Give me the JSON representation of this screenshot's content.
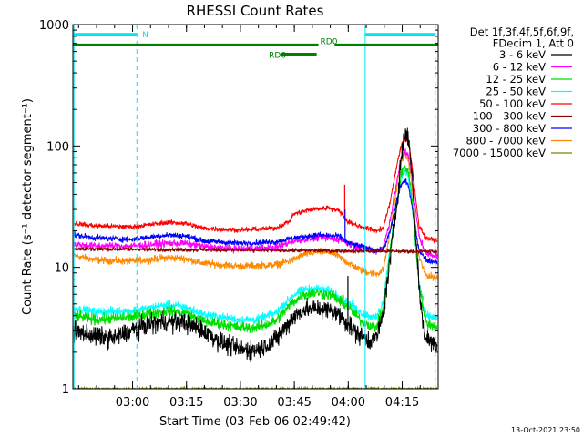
{
  "chart_data": {
    "type": "line",
    "title": "RHESSI Count Rates",
    "xlabel": "Start Time (03-Feb-06 02:49:42)",
    "ylabel": "Count Rate (s⁻¹ detector segment⁻¹)",
    "y_scale": "log",
    "ylim": [
      1,
      1000
    ],
    "xlim_minutes": [
      -6.3,
      95.3
    ],
    "y_ticks": [
      {
        "v": 1,
        "label": "1"
      },
      {
        "v": 10,
        "label": "10"
      },
      {
        "v": 100,
        "label": "100"
      },
      {
        "v": 1000,
        "label": "1000"
      }
    ],
    "x_ticks": [
      {
        "v": 10.3,
        "label": "03:00"
      },
      {
        "v": 25.3,
        "label": "03:15"
      },
      {
        "v": 40.3,
        "label": "03:30"
      },
      {
        "v": 55.3,
        "label": "03:45"
      },
      {
        "v": 70.3,
        "label": "04:00"
      },
      {
        "v": 85.3,
        "label": "04:15"
      }
    ],
    "legend": {
      "header": [
        "Det 1f,3f,4f,5f,6f,9f,",
        "FDecim 1, Att 0"
      ],
      "placement": "right, outside plot"
    },
    "series": [
      {
        "name": "3 - 6 keV",
        "color": "#000000",
        "noise": 0.16,
        "anchors": [
          [
            -6,
            3.0
          ],
          [
            0,
            2.7
          ],
          [
            5,
            2.6
          ],
          [
            10,
            3.0
          ],
          [
            15,
            3.4
          ],
          [
            20,
            3.6
          ],
          [
            25,
            3.5
          ],
          [
            30,
            3.0
          ],
          [
            35,
            2.4
          ],
          [
            40,
            2.1
          ],
          [
            45,
            2.1
          ],
          [
            50,
            2.5
          ],
          [
            52,
            3.0
          ],
          [
            55,
            3.9
          ],
          [
            58,
            4.5
          ],
          [
            62,
            4.6
          ],
          [
            66,
            4.4
          ],
          [
            68,
            4.0
          ],
          [
            70,
            3.5
          ],
          [
            72,
            3.0
          ],
          [
            74,
            2.7
          ],
          [
            76,
            2.5
          ],
          [
            78,
            2.6
          ],
          [
            80,
            4.0
          ],
          [
            82,
            12
          ],
          [
            84,
            38
          ],
          [
            85,
            80
          ],
          [
            86,
            125
          ],
          [
            87,
            118
          ],
          [
            88,
            60
          ],
          [
            89,
            20
          ],
          [
            90,
            7
          ],
          [
            91,
            3.5
          ],
          [
            92,
            2.6
          ],
          [
            94,
            2.4
          ],
          [
            95,
            2.4
          ]
        ]
      },
      {
        "name": "6 - 12 keV",
        "color": "#ff00ff",
        "noise": 0.06,
        "anchors": [
          [
            -6,
            15.5
          ],
          [
            0,
            15
          ],
          [
            10,
            15
          ],
          [
            20,
            15.8
          ],
          [
            25,
            15.8
          ],
          [
            30,
            14.8
          ],
          [
            40,
            14.2
          ],
          [
            50,
            14.5
          ],
          [
            55,
            16.5
          ],
          [
            62,
            17.6
          ],
          [
            68,
            17
          ],
          [
            72,
            15
          ],
          [
            78,
            13.8
          ],
          [
            80,
            14.5
          ],
          [
            82,
            25
          ],
          [
            84,
            55
          ],
          [
            85,
            78
          ],
          [
            86,
            90
          ],
          [
            87,
            85
          ],
          [
            88,
            55
          ],
          [
            89,
            30
          ],
          [
            90,
            18
          ],
          [
            92,
            13
          ],
          [
            95,
            12.5
          ]
        ]
      },
      {
        "name": "12 - 25 keV",
        "color": "#00dd00",
        "noise": 0.09,
        "anchors": [
          [
            -6,
            4.0
          ],
          [
            0,
            3.7
          ],
          [
            10,
            3.9
          ],
          [
            20,
            4.4
          ],
          [
            25,
            4.2
          ],
          [
            30,
            3.6
          ],
          [
            40,
            3.2
          ],
          [
            45,
            3.2
          ],
          [
            50,
            3.6
          ],
          [
            55,
            5.2
          ],
          [
            58,
            6.0
          ],
          [
            62,
            6.2
          ],
          [
            66,
            5.8
          ],
          [
            70,
            4.8
          ],
          [
            74,
            3.6
          ],
          [
            78,
            3.2
          ],
          [
            80,
            4.5
          ],
          [
            82,
            14
          ],
          [
            84,
            36
          ],
          [
            85,
            58
          ],
          [
            86,
            68
          ],
          [
            87,
            62
          ],
          [
            88,
            38
          ],
          [
            89,
            16
          ],
          [
            90,
            7
          ],
          [
            92,
            3.5
          ],
          [
            95,
            3.2
          ]
        ]
      },
      {
        "name": "25 - 50 keV",
        "color": "#00ffff",
        "noise": 0.07,
        "anchors": [
          [
            -6,
            4.6
          ],
          [
            0,
            4.3
          ],
          [
            10,
            4.4
          ],
          [
            20,
            4.9
          ],
          [
            25,
            4.7
          ],
          [
            30,
            4.1
          ],
          [
            40,
            3.7
          ],
          [
            45,
            3.7
          ],
          [
            50,
            4.2
          ],
          [
            55,
            5.9
          ],
          [
            58,
            6.6
          ],
          [
            62,
            6.7
          ],
          [
            66,
            6.3
          ],
          [
            70,
            5.2
          ],
          [
            74,
            4.2
          ],
          [
            78,
            3.8
          ],
          [
            80,
            5.2
          ],
          [
            82,
            15
          ],
          [
            84,
            36
          ],
          [
            85,
            55
          ],
          [
            86,
            62
          ],
          [
            87,
            56
          ],
          [
            88,
            34
          ],
          [
            89,
            15
          ],
          [
            90,
            7.5
          ],
          [
            92,
            4.0
          ],
          [
            95,
            3.8
          ]
        ]
      },
      {
        "name": "50 - 100 keV",
        "color": "#ff0000",
        "noise": 0.04,
        "anchors": [
          [
            -6,
            23
          ],
          [
            0,
            22
          ],
          [
            10,
            21.5
          ],
          [
            20,
            23.5
          ],
          [
            25,
            23
          ],
          [
            30,
            21
          ],
          [
            40,
            20.3
          ],
          [
            50,
            21
          ],
          [
            54,
            24
          ],
          [
            55,
            27.5
          ],
          [
            60,
            30
          ],
          [
            65,
            31
          ],
          [
            68,
            29
          ],
          [
            70,
            24
          ],
          [
            73,
            22
          ],
          [
            78,
            20
          ],
          [
            80,
            21
          ],
          [
            82,
            35
          ],
          [
            84,
            75
          ],
          [
            85,
            100
          ],
          [
            86,
            115
          ],
          [
            87,
            108
          ],
          [
            88,
            70
          ],
          [
            89,
            38
          ],
          [
            90,
            22
          ],
          [
            92,
            17.5
          ],
          [
            95,
            16.5
          ]
        ]
      },
      {
        "name": "100 - 300 keV",
        "color": "#8b0000",
        "noise": 0.03,
        "anchors": [
          [
            -6,
            14.2
          ],
          [
            95,
            13.5
          ]
        ]
      },
      {
        "name": "300 - 800 keV",
        "color": "#0000ff",
        "noise": 0.045,
        "anchors": [
          [
            -6,
            18.5
          ],
          [
            0,
            17.5
          ],
          [
            10,
            17
          ],
          [
            20,
            18.5
          ],
          [
            25,
            18.2
          ],
          [
            30,
            16.5
          ],
          [
            40,
            15.8
          ],
          [
            50,
            16.2
          ],
          [
            55,
            17.5
          ],
          [
            62,
            18.5
          ],
          [
            68,
            18
          ],
          [
            70,
            16
          ],
          [
            78,
            13.8
          ],
          [
            80,
            14
          ],
          [
            82,
            20
          ],
          [
            84,
            38
          ],
          [
            85,
            48
          ],
          [
            86,
            52
          ],
          [
            87,
            48
          ],
          [
            88,
            32
          ],
          [
            89,
            20
          ],
          [
            90,
            14
          ],
          [
            92,
            11.5
          ],
          [
            95,
            11
          ]
        ]
      },
      {
        "name": "800 - 7000 keV",
        "color": "#ff8800",
        "noise": 0.06,
        "anchors": [
          [
            -6,
            12.5
          ],
          [
            0,
            11.5
          ],
          [
            10,
            11.2
          ],
          [
            20,
            12
          ],
          [
            25,
            11.8
          ],
          [
            30,
            10.8
          ],
          [
            40,
            10.2
          ],
          [
            50,
            10.5
          ],
          [
            55,
            11.5
          ],
          [
            58,
            12.8
          ],
          [
            62,
            13.5
          ],
          [
            66,
            13.2
          ],
          [
            70,
            11
          ],
          [
            74,
            9.4
          ],
          [
            78,
            8.8
          ],
          [
            80,
            9.5
          ],
          [
            82,
            20
          ],
          [
            84,
            50
          ],
          [
            85,
            75
          ],
          [
            86,
            85
          ],
          [
            87,
            78
          ],
          [
            88,
            48
          ],
          [
            89,
            22
          ],
          [
            90,
            12
          ],
          [
            92,
            8.6
          ],
          [
            95,
            8.2
          ]
        ]
      },
      {
        "name": "7000 - 15000 keV",
        "color": "#808000",
        "noise": 0.02,
        "anchors": [
          [
            -6,
            1.0
          ],
          [
            95,
            1.0
          ]
        ]
      }
    ],
    "spikes": [
      {
        "series": "50 - 100 keV",
        "x": 69.3,
        "y": 48
      },
      {
        "series": "300 - 800 keV",
        "x": 69.4,
        "y": 30
      },
      {
        "series": "3 - 6 keV",
        "x": 70.2,
        "y": 8.5
      }
    ],
    "flag_bars": [
      {
        "label": "N",
        "color": "#00e5ee",
        "y": 830,
        "segments": [
          [
            -6.3,
            11.5
          ],
          [
            75,
            94.5
          ]
        ]
      },
      {
        "label": "RD0",
        "color": "#008000",
        "y": 680,
        "segments": [
          [
            -6.3,
            62
          ],
          [
            66.5,
            95.3
          ]
        ]
      },
      {
        "label": "RD6",
        "color": "#008000",
        "y": 570,
        "segments": [
          [
            51.7,
            61.5
          ]
        ]
      }
    ],
    "vertical_markers": [
      {
        "x": 11.5,
        "style": "dashed",
        "color": "#00e5ee"
      },
      {
        "x": 75,
        "style": "solid",
        "color": "#00e5ee"
      },
      {
        "x": 94.5,
        "style": "dashed",
        "color": "#00e5ee"
      },
      {
        "x": -6.0,
        "style": "solid",
        "color": "#00e5ee"
      }
    ],
    "timestamp": "13-Oct-2021 23:50"
  }
}
